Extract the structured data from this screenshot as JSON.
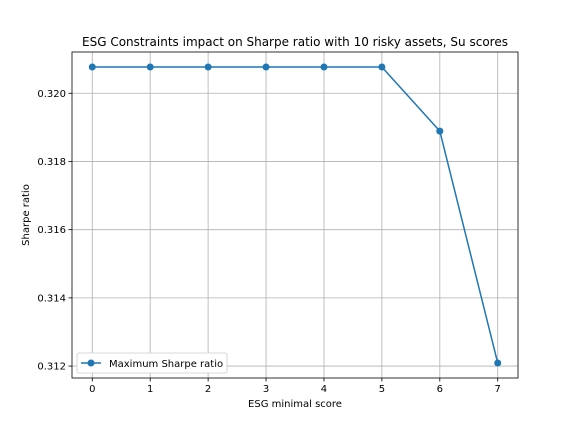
{
  "chart_data": {
    "type": "line",
    "title": "ESG Constraints impact on Sharpe ratio with 10 risky assets, Su scores",
    "xlabel": "ESG minimal score",
    "ylabel": "Sharpe ratio",
    "x": [
      0,
      1,
      2,
      3,
      4,
      5,
      6,
      7
    ],
    "series": [
      {
        "name": "Maximum Sharpe ratio",
        "values": [
          0.32077,
          0.32077,
          0.32077,
          0.32077,
          0.32077,
          0.32077,
          0.31889,
          0.31209
        ],
        "color": "#1f77b4",
        "marker": "circle"
      }
    ],
    "xlim": [
      -0.35,
      7.35
    ],
    "ylim": [
      0.31165,
      0.32121
    ],
    "xticks": [
      0,
      1,
      2,
      3,
      4,
      5,
      6,
      7
    ],
    "xtick_labels": [
      "0",
      "1",
      "2",
      "3",
      "4",
      "5",
      "6",
      "7"
    ],
    "yticks": [
      0.312,
      0.314,
      0.316,
      0.318,
      0.32
    ],
    "ytick_labels": [
      "0.312",
      "0.314",
      "0.316",
      "0.318",
      "0.320"
    ],
    "grid": true,
    "legend": "lower-left"
  }
}
